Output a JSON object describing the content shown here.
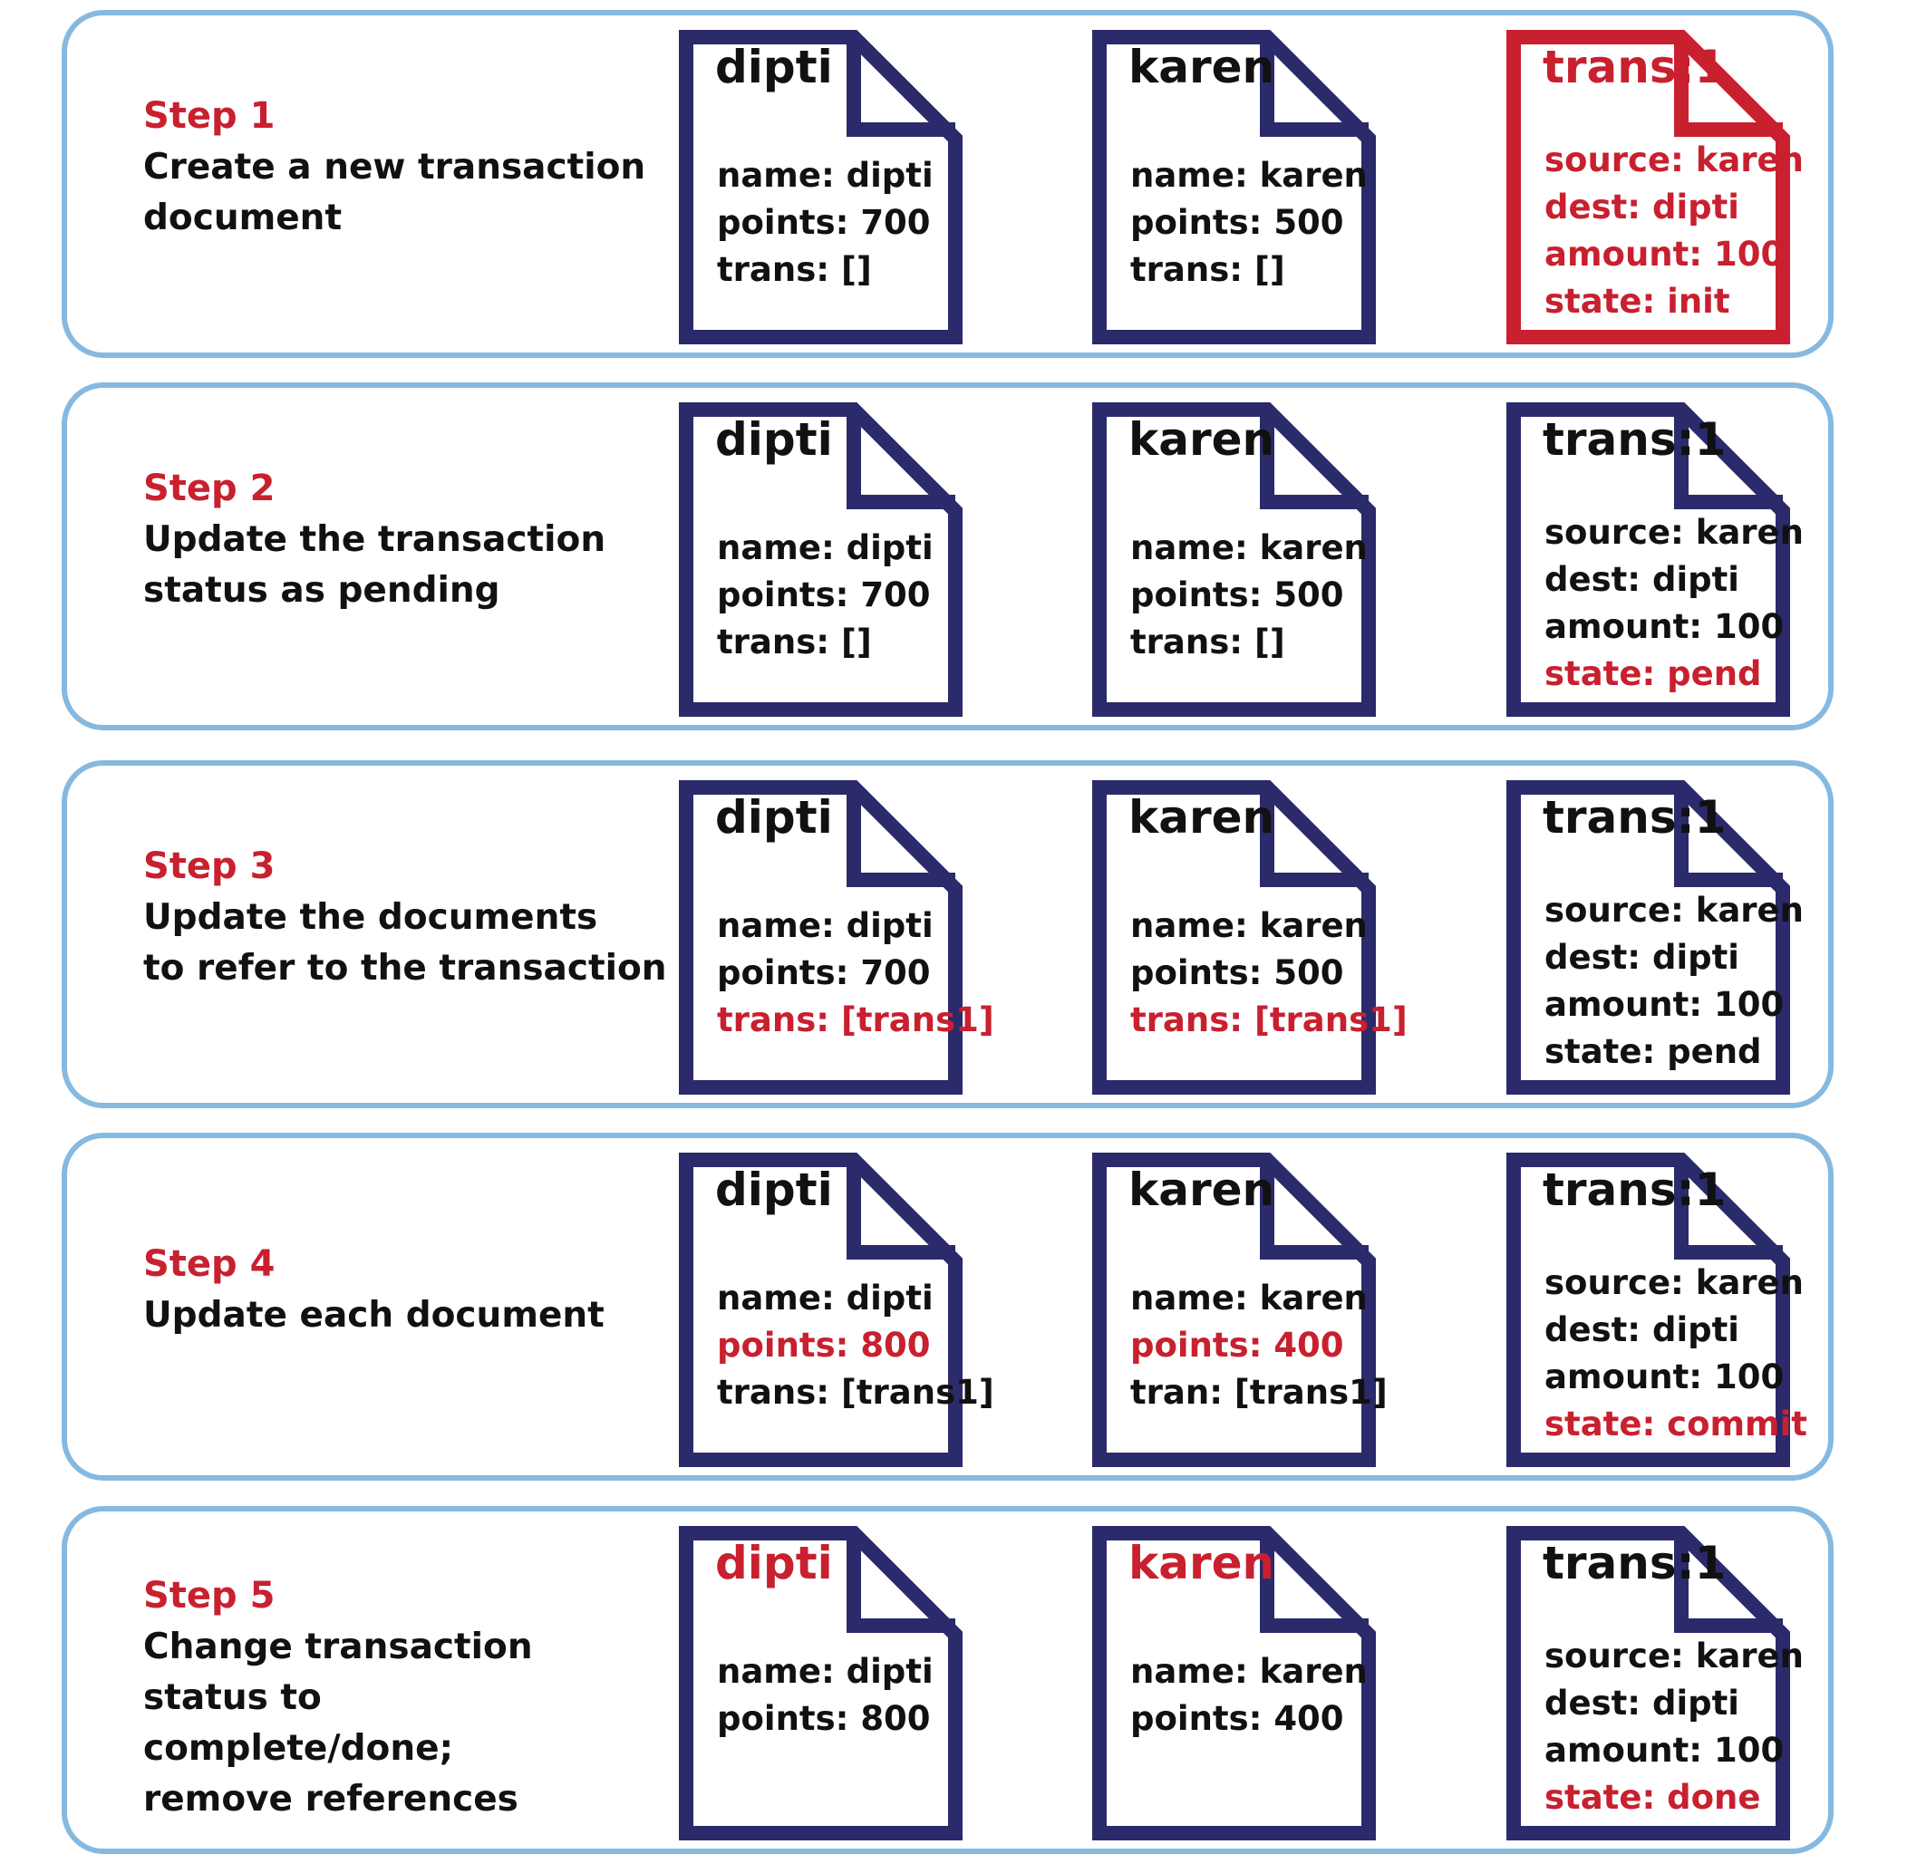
{
  "colors": {
    "navy": "#2b2a6b",
    "red": "#c8202f",
    "row_border": "#86b9e0",
    "text": "#111111"
  },
  "steps": [
    {
      "label": "Step 1",
      "desc": [
        "Create a new transaction",
        "document"
      ],
      "docs": [
        {
          "title": "dipti",
          "title_red": false,
          "outline_red": false,
          "fields": [
            {
              "text": "name: dipti",
              "red": false
            },
            {
              "text": "points: 700",
              "red": false
            },
            {
              "text": "trans: []",
              "red": false
            }
          ]
        },
        {
          "title": "karen",
          "title_red": false,
          "outline_red": false,
          "fields": [
            {
              "text": "name: karen",
              "red": false
            },
            {
              "text": "points: 500",
              "red": false
            },
            {
              "text": "trans: []",
              "red": false
            }
          ]
        },
        {
          "title": "trans:1",
          "title_red": true,
          "outline_red": true,
          "fields": [
            {
              "text": "source: karen",
              "red": true
            },
            {
              "text": "dest: dipti",
              "red": true
            },
            {
              "text": "amount: 100",
              "red": true
            },
            {
              "text": "state: init",
              "red": true
            }
          ]
        }
      ]
    },
    {
      "label": "Step 2",
      "desc": [
        "Update the transaction",
        "status as pending"
      ],
      "docs": [
        {
          "title": "dipti",
          "title_red": false,
          "outline_red": false,
          "fields": [
            {
              "text": "name: dipti",
              "red": false
            },
            {
              "text": "points: 700",
              "red": false
            },
            {
              "text": "trans: []",
              "red": false
            }
          ]
        },
        {
          "title": "karen",
          "title_red": false,
          "outline_red": false,
          "fields": [
            {
              "text": "name: karen",
              "red": false
            },
            {
              "text": "points: 500",
              "red": false
            },
            {
              "text": "trans: []",
              "red": false
            }
          ]
        },
        {
          "title": "trans:1",
          "title_red": false,
          "outline_red": false,
          "fields": [
            {
              "text": "source: karen",
              "red": false
            },
            {
              "text": "dest: dipti",
              "red": false
            },
            {
              "text": "amount: 100",
              "red": false
            },
            {
              "text": "state: pend",
              "red": true
            }
          ]
        }
      ]
    },
    {
      "label": "Step 3",
      "desc": [
        "Update the documents",
        "to refer to the transaction"
      ],
      "docs": [
        {
          "title": "dipti",
          "title_red": false,
          "outline_red": false,
          "fields": [
            {
              "text": "name: dipti",
              "red": false
            },
            {
              "text": "points: 700",
              "red": false
            },
            {
              "text": "trans: [trans1]",
              "red": true
            }
          ]
        },
        {
          "title": "karen",
          "title_red": false,
          "outline_red": false,
          "fields": [
            {
              "text": "name: karen",
              "red": false
            },
            {
              "text": "points: 500",
              "red": false
            },
            {
              "text": "trans: [trans1]",
              "red": true
            }
          ]
        },
        {
          "title": "trans:1",
          "title_red": false,
          "outline_red": false,
          "fields": [
            {
              "text": "source: karen",
              "red": false
            },
            {
              "text": "dest: dipti",
              "red": false
            },
            {
              "text": "amount: 100",
              "red": false
            },
            {
              "text": "state: pend",
              "red": false
            }
          ]
        }
      ]
    },
    {
      "label": "Step 4",
      "desc": [
        "Update each document"
      ],
      "docs": [
        {
          "title": "dipti",
          "title_red": false,
          "outline_red": false,
          "fields": [
            {
              "text": "name: dipti",
              "red": false
            },
            {
              "text": "points: 800",
              "red": true
            },
            {
              "text": "trans: [trans1]",
              "red": false
            }
          ]
        },
        {
          "title": "karen",
          "title_red": false,
          "outline_red": false,
          "fields": [
            {
              "text": "name: karen",
              "red": false
            },
            {
              "text": "points: 400",
              "red": true
            },
            {
              "text": "tran: [trans1]",
              "red": false
            }
          ]
        },
        {
          "title": "trans:1",
          "title_red": false,
          "outline_red": false,
          "fields": [
            {
              "text": "source: karen",
              "red": false
            },
            {
              "text": "dest: dipti",
              "red": false
            },
            {
              "text": "amount: 100",
              "red": false
            },
            {
              "text": "state: commit",
              "red": true
            }
          ]
        }
      ]
    },
    {
      "label": "Step 5",
      "desc": [
        "Change transaction",
        "status to",
        "complete/done;",
        "remove references"
      ],
      "docs": [
        {
          "title": "dipti",
          "title_red": true,
          "outline_red": false,
          "fields": [
            {
              "text": "name: dipti",
              "red": false
            },
            {
              "text": "points: 800",
              "red": false
            }
          ]
        },
        {
          "title": "karen",
          "title_red": true,
          "outline_red": false,
          "fields": [
            {
              "text": "name: karen",
              "red": false
            },
            {
              "text": "points: 400",
              "red": false
            }
          ]
        },
        {
          "title": "trans:1",
          "title_red": false,
          "outline_red": false,
          "fields": [
            {
              "text": "source: karen",
              "red": false
            },
            {
              "text": "dest: dipti",
              "red": false
            },
            {
              "text": "amount: 100",
              "red": false
            },
            {
              "text": "state: done",
              "red": true
            }
          ]
        }
      ]
    }
  ]
}
